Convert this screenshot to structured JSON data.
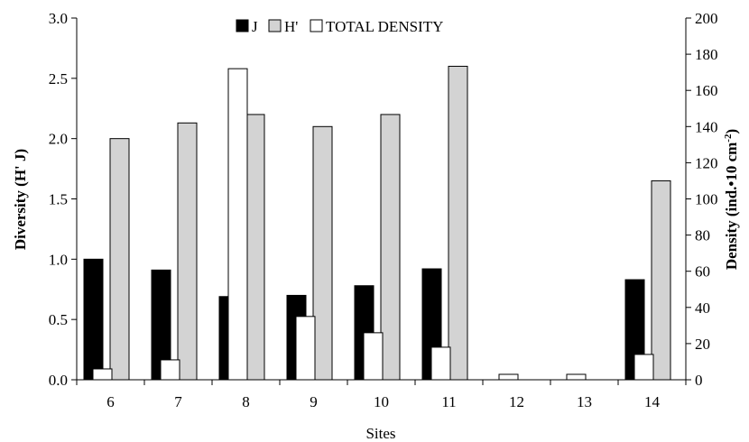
{
  "chart_data": {
    "type": "bar",
    "xlabel": "Sites",
    "ylabel_left": "Diversity (H' J)",
    "ylabel_right_main": "Density (ind.•10 cm",
    "ylabel_right_exp": "-2",
    "ylabel_right_close": ")",
    "categories": [
      "6",
      "7",
      "8",
      "9",
      "10",
      "11",
      "12",
      "13",
      "14"
    ],
    "series": [
      {
        "name": "J",
        "axis": "left",
        "color": "#000000",
        "values": [
          1.0,
          0.91,
          0.69,
          0.7,
          0.78,
          0.92,
          0,
          0,
          0.83
        ]
      },
      {
        "name": "H'",
        "axis": "left",
        "color": "#d3d3d3",
        "values": [
          2.0,
          2.13,
          2.2,
          2.1,
          2.2,
          2.6,
          0,
          0,
          1.65
        ]
      },
      {
        "name": "TOTAL DENSITY",
        "axis": "right",
        "color": "#ffffff",
        "values": [
          6,
          11,
          172,
          35,
          26,
          18,
          3,
          3,
          14
        ]
      }
    ],
    "ylim_left": [
      0,
      3.0
    ],
    "yticks_left": [
      "0.0",
      "0.5",
      "1.0",
      "1.5",
      "2.0",
      "2.5",
      "3.0"
    ],
    "ylim_right": [
      0,
      200
    ],
    "yticks_right": [
      "0",
      "20",
      "40",
      "60",
      "80",
      "100",
      "120",
      "140",
      "160",
      "180",
      "200"
    ],
    "legend_position": "top-center",
    "grid": false
  }
}
